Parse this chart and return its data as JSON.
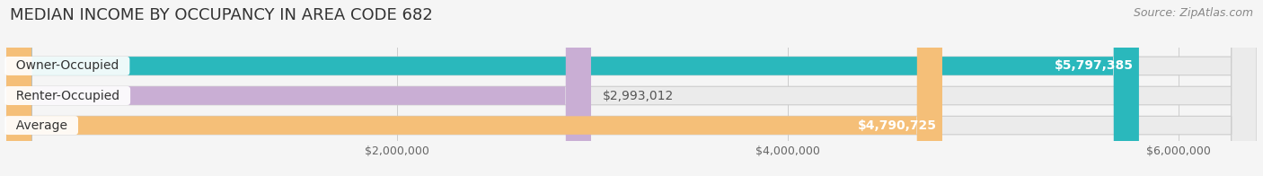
{
  "title": "MEDIAN INCOME BY OCCUPANCY IN AREA CODE 682",
  "source": "Source: ZipAtlas.com",
  "categories": [
    "Owner-Occupied",
    "Renter-Occupied",
    "Average"
  ],
  "values": [
    5797385,
    2993012,
    4790725
  ],
  "bar_colors": [
    "#2ab8bc",
    "#c9aed4",
    "#f5bf78"
  ],
  "bar_bg_color": "#ebebeb",
  "label_colors": [
    "#ffffff",
    "#555555",
    "#ffffff"
  ],
  "value_labels": [
    "$5,797,385",
    "$2,993,012",
    "$4,790,725"
  ],
  "xmax": 6400000,
  "xtick_vals": [
    2000000,
    4000000,
    6000000
  ],
  "xtick_labels": [
    "$2,000,000",
    "$4,000,000",
    "$6,000,000"
  ],
  "background_color": "#f5f5f5",
  "title_fontsize": 13,
  "source_fontsize": 9,
  "bar_label_fontsize": 10,
  "value_fontsize": 10,
  "bar_height": 0.62,
  "bar_gap": 0.18,
  "rounding": 130000
}
